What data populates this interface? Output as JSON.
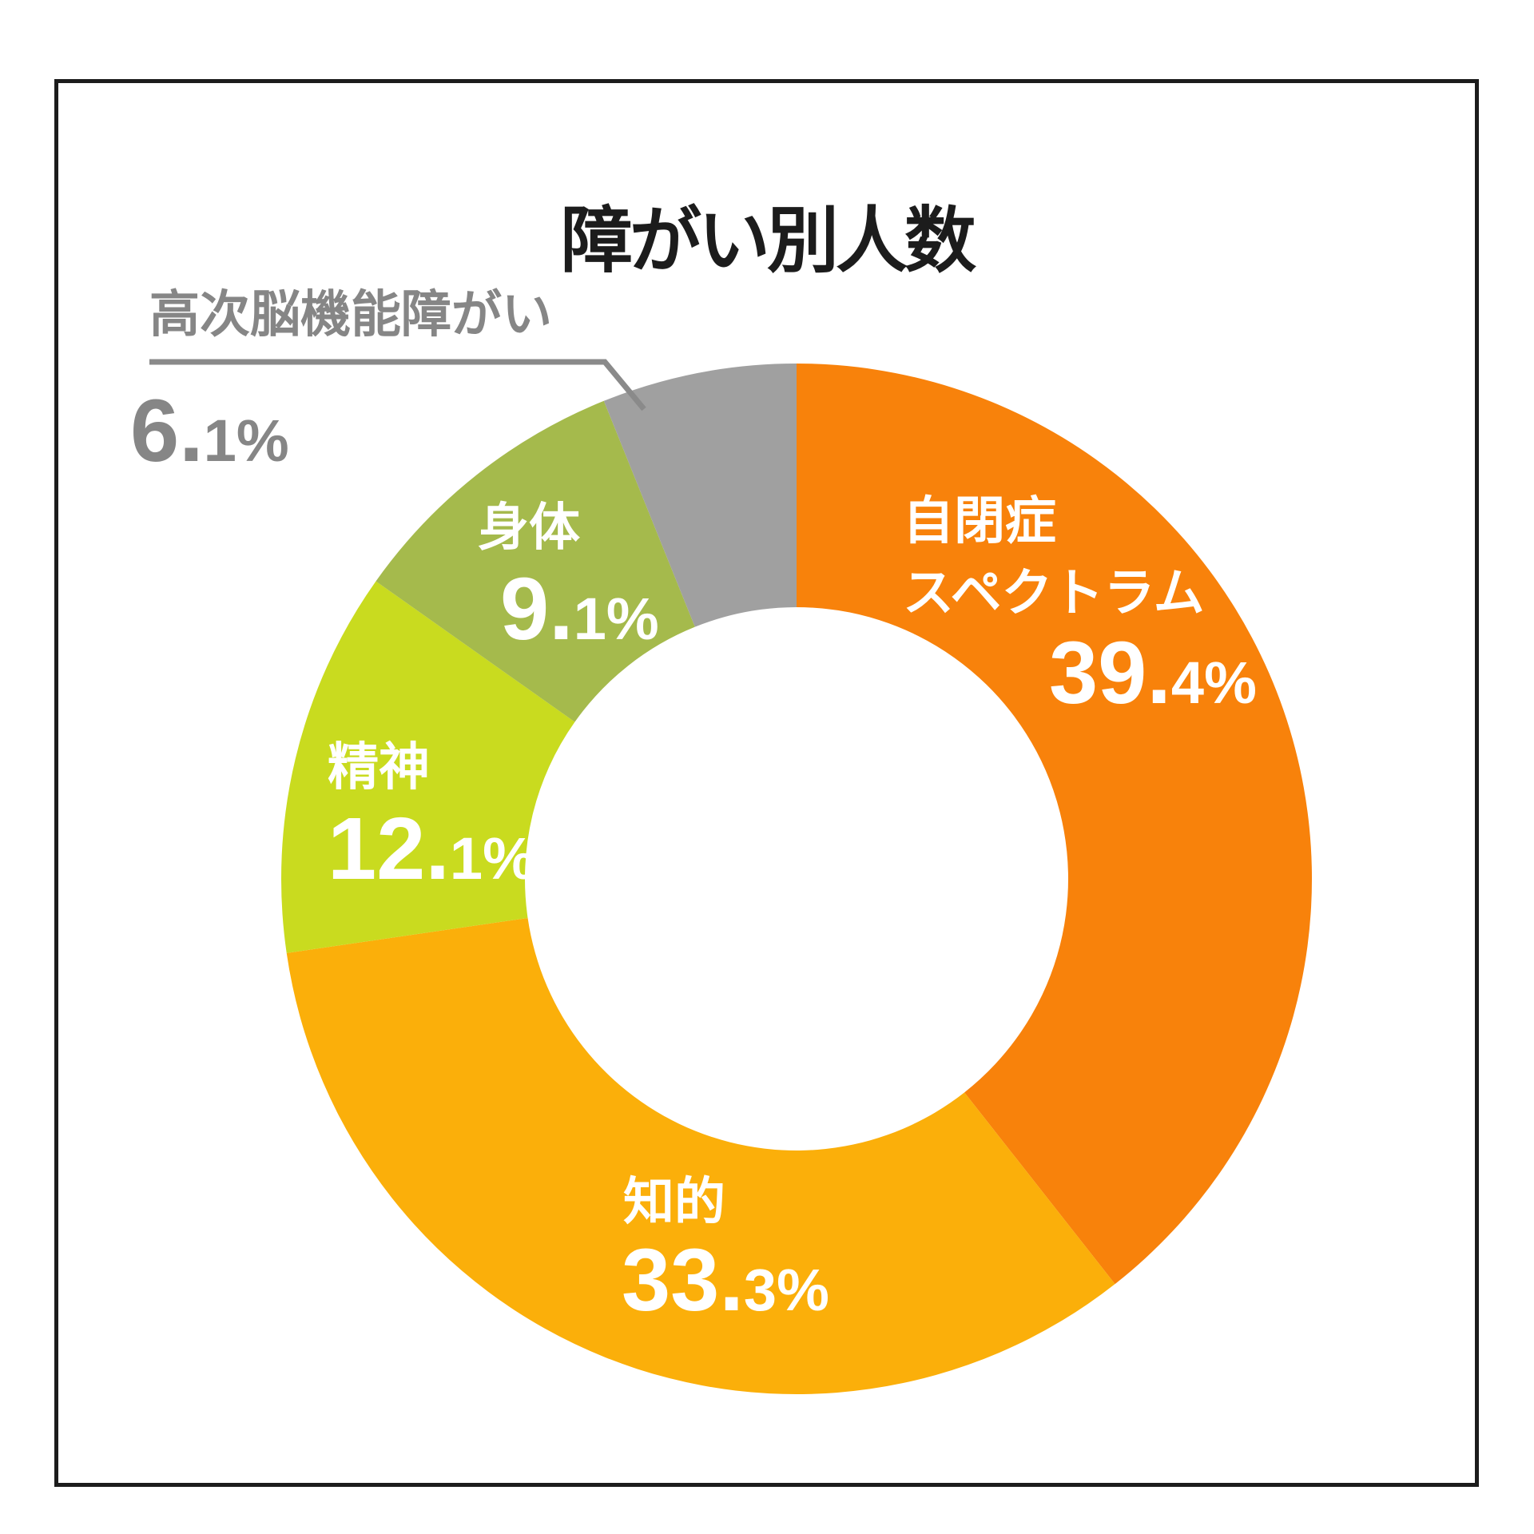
{
  "title": "障がい別人数",
  "colors": {
    "background": "#FFFFFF",
    "frame": "#1C1C1C",
    "title_text": "#1C1C1C",
    "callout_line": "#8A8A8A",
    "callout_text": "#868686"
  },
  "chart_data": {
    "type": "pie",
    "subtype": "donut",
    "title": "障がい別人数",
    "unit": "%",
    "start_angle_deg": 0,
    "direction": "clockwise",
    "legend_position": "labels-on-slices",
    "categories": [
      "自閉症スペクトラム",
      "知的",
      "精神",
      "身体",
      "高次脳機能障がい"
    ],
    "values": [
      39.4,
      33.3,
      12.1,
      9.1,
      6.1
    ],
    "slices": [
      {
        "label": "自閉症スペクトラム",
        "label_lines": [
          "自閉症",
          "スペクトラム"
        ],
        "value": 39.4,
        "display": "39.4%",
        "pct_main": "39.",
        "pct_rest": "4%",
        "color": "#F8820B",
        "label_color": "#FFFFFF"
      },
      {
        "label": "知的",
        "value": 33.3,
        "display": "33.3%",
        "pct_main": "33.",
        "pct_rest": "3%",
        "color": "#FBAF0A",
        "label_color": "#FFFFFF"
      },
      {
        "label": "精神",
        "value": 12.1,
        "display": "12.1%",
        "pct_main": "12.",
        "pct_rest": "1%",
        "color": "#C9DB1F",
        "label_color": "#FFFFFF"
      },
      {
        "label": "身体",
        "value": 9.1,
        "display": "9.1%",
        "pct_main": "9.",
        "pct_rest": "1%",
        "color": "#A5BA4C",
        "label_color": "#FFFFFF"
      },
      {
        "label": "高次脳機能障がい",
        "value": 6.1,
        "display": "6.1%",
        "pct_main": "6.",
        "pct_rest": "1%",
        "color": "#A0A0A0",
        "label_color": "#868686",
        "callout": true
      }
    ]
  }
}
